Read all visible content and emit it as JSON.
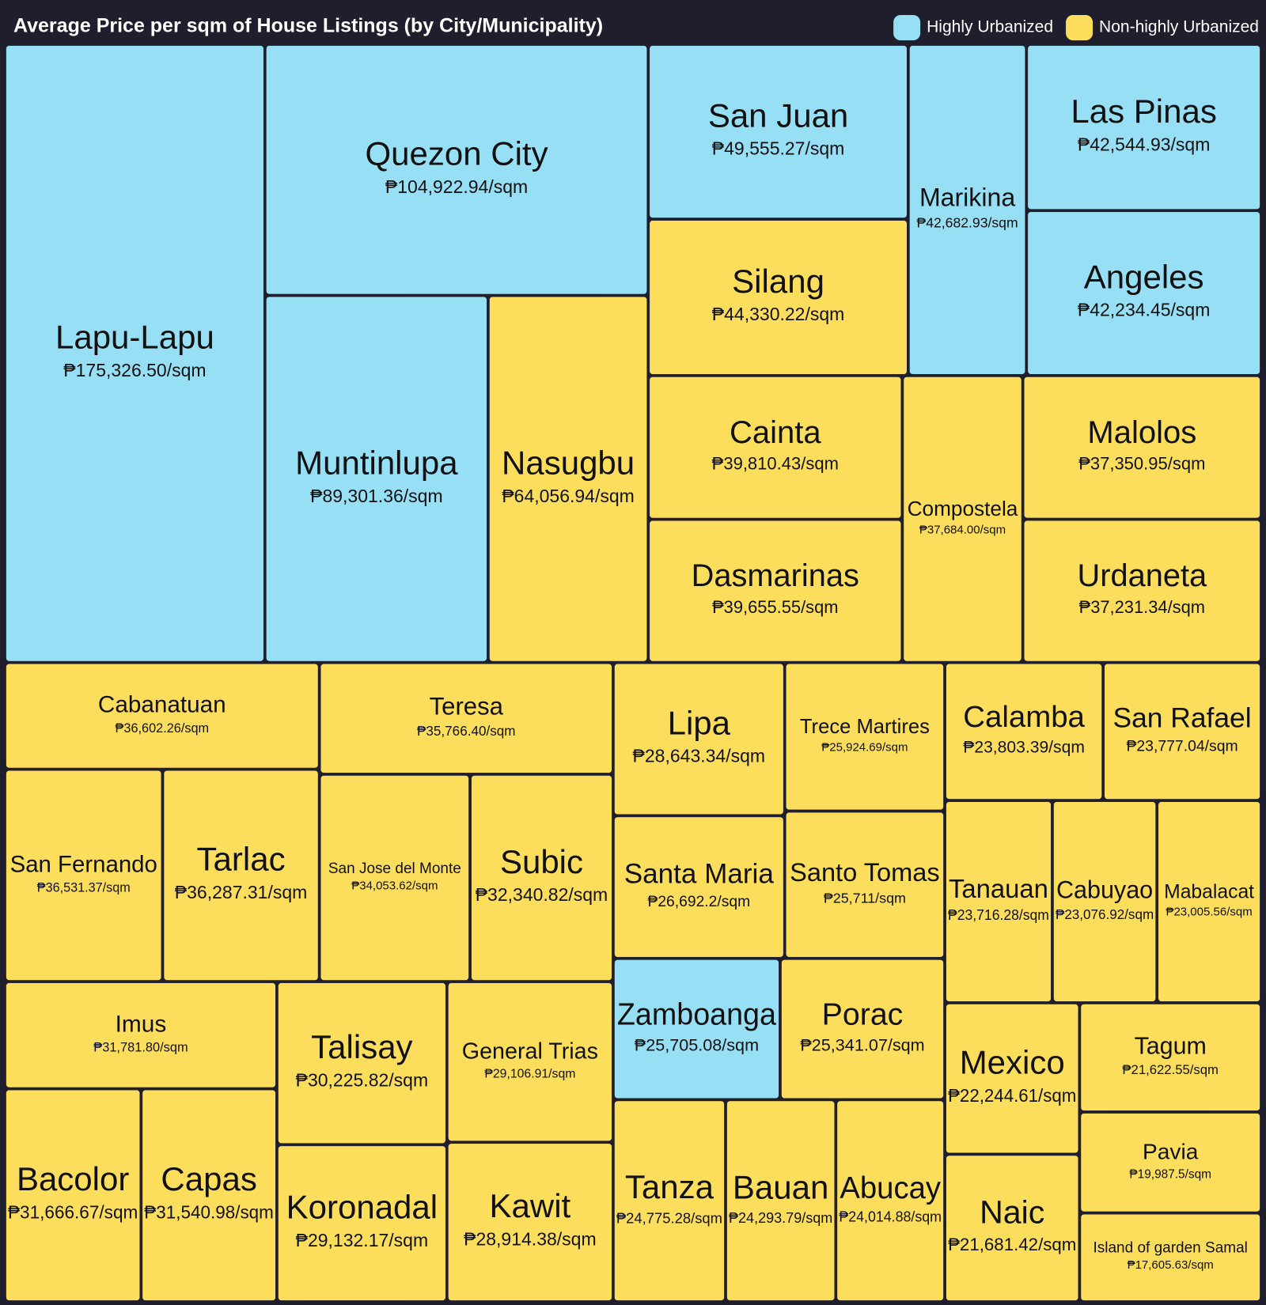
{
  "chart_data": {
    "type": "treemap",
    "title": "Average Price per sqm of House Listings (by City/Municipality)",
    "groups": [
      {
        "name": "Highly Urbanized",
        "color": "#96dff5"
      },
      {
        "name": "Non-highly Urbanized",
        "color": "#fddd5c"
      }
    ],
    "items": [
      {
        "name": "Lapu-Lapu",
        "value": 175326.5,
        "value_label": "₱175,326.50/sqm",
        "group": "Highly Urbanized"
      },
      {
        "name": "Quezon City",
        "value": 104922.94,
        "value_label": "₱104,922.94/sqm",
        "group": "Highly Urbanized"
      },
      {
        "name": "Muntinlupa",
        "value": 89301.36,
        "value_label": "₱89,301.36/sqm",
        "group": "Highly Urbanized"
      },
      {
        "name": "Nasugbu",
        "value": 64056.94,
        "value_label": "₱64,056.94/sqm",
        "group": "Non-highly Urbanized"
      },
      {
        "name": "San Juan",
        "value": 49555.27,
        "value_label": "₱49,555.27/sqm",
        "group": "Highly Urbanized"
      },
      {
        "name": "Silang",
        "value": 44330.22,
        "value_label": "₱44,330.22/sqm",
        "group": "Non-highly Urbanized"
      },
      {
        "name": "Marikina",
        "value": 42682.93,
        "value_label": "₱42,682.93/sqm",
        "group": "Highly Urbanized"
      },
      {
        "name": "Las Pinas",
        "value": 42544.93,
        "value_label": "₱42,544.93/sqm",
        "group": "Highly Urbanized"
      },
      {
        "name": "Angeles",
        "value": 42234.45,
        "value_label": "₱42,234.45/sqm",
        "group": "Highly Urbanized"
      },
      {
        "name": "Cainta",
        "value": 39810.43,
        "value_label": "₱39,810.43/sqm",
        "group": "Non-highly Urbanized"
      },
      {
        "name": "Dasmarinas",
        "value": 39655.55,
        "value_label": "₱39,655.55/sqm",
        "group": "Non-highly Urbanized"
      },
      {
        "name": "Compostela",
        "value": 37684.0,
        "value_label": "₱37,684.00/sqm",
        "group": "Non-highly Urbanized"
      },
      {
        "name": "Malolos",
        "value": 37350.95,
        "value_label": "₱37,350.95/sqm",
        "group": "Non-highly Urbanized"
      },
      {
        "name": "Urdaneta",
        "value": 37231.34,
        "value_label": "₱37,231.34/sqm",
        "group": "Non-highly Urbanized"
      },
      {
        "name": "Cabanatuan",
        "value": 36602.26,
        "value_label": "₱36,602.26/sqm",
        "group": "Non-highly Urbanized"
      },
      {
        "name": "San Fernando",
        "value": 36531.37,
        "value_label": "₱36,531.37/sqm",
        "group": "Non-highly Urbanized"
      },
      {
        "name": "Tarlac",
        "value": 36287.31,
        "value_label": "₱36,287.31/sqm",
        "group": "Non-highly Urbanized"
      },
      {
        "name": "Teresa",
        "value": 35766.4,
        "value_label": "₱35,766.40/sqm",
        "group": "Non-highly Urbanized"
      },
      {
        "name": "San Jose del Monte",
        "value": 34053.62,
        "value_label": "₱34,053.62/sqm",
        "group": "Non-highly Urbanized"
      },
      {
        "name": "Subic",
        "value": 32340.82,
        "value_label": "₱32,340.82/sqm",
        "group": "Non-highly Urbanized"
      },
      {
        "name": "Imus",
        "value": 31781.8,
        "value_label": "₱31,781.80/sqm",
        "group": "Non-highly Urbanized"
      },
      {
        "name": "Bacolor",
        "value": 31666.67,
        "value_label": "₱31,666.67/sqm",
        "group": "Non-highly Urbanized"
      },
      {
        "name": "Capas",
        "value": 31540.98,
        "value_label": "₱31,540.98/sqm",
        "group": "Non-highly Urbanized"
      },
      {
        "name": "Talisay",
        "value": 30225.82,
        "value_label": "₱30,225.82/sqm",
        "group": "Non-highly Urbanized"
      },
      {
        "name": "Koronadal",
        "value": 29132.17,
        "value_label": "₱29,132.17/sqm",
        "group": "Non-highly Urbanized"
      },
      {
        "name": "General Trias",
        "value": 29106.91,
        "value_label": "₱29,106.91/sqm",
        "group": "Non-highly Urbanized"
      },
      {
        "name": "Kawit",
        "value": 28914.38,
        "value_label": "₱28,914.38/sqm",
        "group": "Non-highly Urbanized"
      },
      {
        "name": "Lipa",
        "value": 28643.34,
        "value_label": "₱28,643.34/sqm",
        "group": "Non-highly Urbanized"
      },
      {
        "name": "Santa Maria",
        "value": 26692.2,
        "value_label": "₱26,692.2/sqm",
        "group": "Non-highly Urbanized"
      },
      {
        "name": "Trece Martires",
        "value": 25924.69,
        "value_label": "₱25,924.69/sqm",
        "group": "Non-highly Urbanized"
      },
      {
        "name": "Santo Tomas",
        "value": 25711,
        "value_label": "₱25,711/sqm",
        "group": "Non-highly Urbanized"
      },
      {
        "name": "Zamboanga",
        "value": 25705.08,
        "value_label": "₱25,705.08/sqm",
        "group": "Highly Urbanized"
      },
      {
        "name": "Porac",
        "value": 25341.07,
        "value_label": "₱25,341.07/sqm",
        "group": "Non-highly Urbanized"
      },
      {
        "name": "Tanza",
        "value": 24775.28,
        "value_label": "₱24,775.28/sqm",
        "group": "Non-highly Urbanized"
      },
      {
        "name": "Bauan",
        "value": 24293.79,
        "value_label": "₱24,293.79/sqm",
        "group": "Non-highly Urbanized"
      },
      {
        "name": "Abucay",
        "value": 24014.88,
        "value_label": "₱24,014.88/sqm",
        "group": "Non-highly Urbanized"
      },
      {
        "name": "Calamba",
        "value": 23803.39,
        "value_label": "₱23,803.39/sqm",
        "group": "Non-highly Urbanized"
      },
      {
        "name": "San Rafael",
        "value": 23777.04,
        "value_label": "₱23,777.04/sqm",
        "group": "Non-highly Urbanized"
      },
      {
        "name": "Tanauan",
        "value": 23716.28,
        "value_label": "₱23,716.28/sqm",
        "group": "Non-highly Urbanized"
      },
      {
        "name": "Cabuyao",
        "value": 23076.92,
        "value_label": "₱23,076.92/sqm",
        "group": "Non-highly Urbanized"
      },
      {
        "name": "Mabalacat",
        "value": 23005.56,
        "value_label": "₱23,005.56/sqm",
        "group": "Non-highly Urbanized"
      },
      {
        "name": "Mexico",
        "value": 22244.61,
        "value_label": "₱22,244.61/sqm",
        "group": "Non-highly Urbanized"
      },
      {
        "name": "Naic",
        "value": 21681.42,
        "value_label": "₱21,681.42/sqm",
        "group": "Non-highly Urbanized"
      },
      {
        "name": "Tagum",
        "value": 21622.55,
        "value_label": "₱21,622.55/sqm",
        "group": "Non-highly Urbanized"
      },
      {
        "name": "Pavia",
        "value": 19987.5,
        "value_label": "₱19,987.5/sqm",
        "group": "Non-highly Urbanized"
      },
      {
        "name": "Island of garden Samal",
        "value": 17605.63,
        "value_label": "₱17,605.63/sqm",
        "group": "Non-highly Urbanized"
      }
    ]
  }
}
